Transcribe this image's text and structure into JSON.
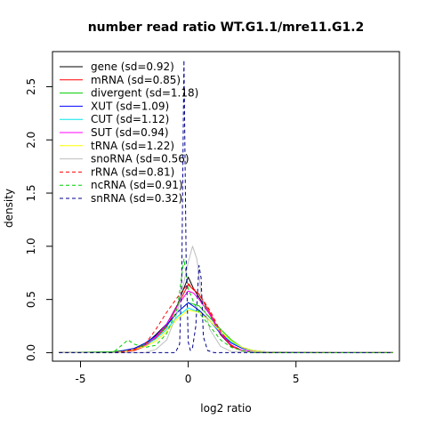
{
  "chart_data": {
    "type": "line",
    "title": "number read ratio WT.G1.1/mre11.G1.2",
    "xlabel": "log2 ratio",
    "ylabel": "density",
    "xlim": [
      -6.3,
      9.8
    ],
    "ylim": [
      -0.08,
      2.83
    ],
    "x_ticks": [
      -5,
      0,
      5
    ],
    "x_tick_labels": [
      "-5",
      "0",
      "5"
    ],
    "y_ticks": [
      0.0,
      0.5,
      1.0,
      1.5,
      2.0,
      2.5
    ],
    "y_tick_labels": [
      "0.0",
      "0.5",
      "1.0",
      "1.5",
      "2.0",
      "2.5"
    ],
    "grid": false,
    "legend_position": "top-left",
    "series": [
      {
        "name": "gene (sd=0.92)",
        "color": "#000000",
        "dash": "solid",
        "x": [
          -6,
          -3.5,
          -3,
          -2.5,
          -2,
          -1.5,
          -1,
          -0.5,
          0,
          0.25,
          0.5,
          1,
          1.5,
          2,
          2.5,
          3,
          3.5,
          9.5
        ],
        "y": [
          0,
          0,
          0.01,
          0.03,
          0.08,
          0.17,
          0.27,
          0.45,
          0.71,
          0.6,
          0.52,
          0.36,
          0.17,
          0.06,
          0.02,
          0.01,
          0,
          0
        ]
      },
      {
        "name": "mRNA (sd=0.85)",
        "color": "#ff0000",
        "dash": "solid",
        "x": [
          -6,
          -3.5,
          -3,
          -2.5,
          -2,
          -1.5,
          -1,
          -0.5,
          0,
          0.25,
          0.5,
          1,
          1.5,
          2,
          2.5,
          3,
          3.5,
          9.5
        ],
        "y": [
          0,
          0,
          0.01,
          0.02,
          0.06,
          0.14,
          0.24,
          0.44,
          0.64,
          0.59,
          0.55,
          0.38,
          0.18,
          0.06,
          0.02,
          0.01,
          0,
          0
        ]
      },
      {
        "name": "divergent (sd=1.18)",
        "color": "#00cd00",
        "dash": "solid",
        "x": [
          -6,
          -3.5,
          -3,
          -2.5,
          -2,
          -1.5,
          -1,
          -0.5,
          0,
          0.5,
          1,
          1.5,
          2,
          2.5,
          3,
          3.5,
          4,
          9.5
        ],
        "y": [
          0,
          0.01,
          0.02,
          0.04,
          0.08,
          0.15,
          0.25,
          0.38,
          0.47,
          0.44,
          0.33,
          0.22,
          0.12,
          0.05,
          0.02,
          0.01,
          0,
          0
        ]
      },
      {
        "name": "XUT (sd=1.09)",
        "color": "#0000ff",
        "dash": "solid",
        "x": [
          -6,
          -3.5,
          -3,
          -2.5,
          -2,
          -1.5,
          -1,
          -0.5,
          0,
          0.5,
          1,
          1.5,
          2,
          2.5,
          3,
          3.5,
          4,
          9.5
        ],
        "y": [
          0,
          0,
          0.02,
          0.04,
          0.09,
          0.16,
          0.26,
          0.38,
          0.47,
          0.4,
          0.3,
          0.18,
          0.09,
          0.04,
          0.02,
          0.01,
          0,
          0
        ]
      },
      {
        "name": "CUT (sd=1.12)",
        "color": "#00e5ee",
        "dash": "solid",
        "x": [
          -6,
          -3.5,
          -3,
          -2.5,
          -2,
          -1.5,
          -1,
          -0.5,
          0,
          0.5,
          1,
          1.5,
          2,
          2.5,
          3,
          3.5,
          4,
          9.5
        ],
        "y": [
          0,
          0,
          0.01,
          0.03,
          0.07,
          0.13,
          0.22,
          0.34,
          0.42,
          0.38,
          0.3,
          0.19,
          0.1,
          0.05,
          0.02,
          0.01,
          0,
          0
        ]
      },
      {
        "name": "SUT (sd=0.94)",
        "color": "#ff00ff",
        "dash": "solid",
        "x": [
          -6,
          -3.5,
          -3,
          -2.5,
          -2,
          -1.5,
          -1,
          -0.5,
          0,
          0.25,
          0.5,
          1,
          1.5,
          2,
          2.5,
          3,
          3.5,
          9.5
        ],
        "y": [
          0,
          0,
          0.01,
          0.03,
          0.07,
          0.15,
          0.27,
          0.44,
          0.58,
          0.56,
          0.5,
          0.36,
          0.18,
          0.07,
          0.02,
          0.01,
          0,
          0
        ]
      },
      {
        "name": "tRNA (sd=1.22)",
        "color": "#ffff00",
        "dash": "solid",
        "x": [
          -6,
          -3.5,
          -3,
          -2.5,
          -2,
          -1.5,
          -1,
          -0.5,
          0,
          0.5,
          1,
          1.5,
          2,
          2.5,
          3,
          3.5,
          4,
          9.5
        ],
        "y": [
          0,
          0,
          0.01,
          0.03,
          0.06,
          0.11,
          0.2,
          0.32,
          0.4,
          0.38,
          0.3,
          0.2,
          0.11,
          0.05,
          0.02,
          0.01,
          0,
          0
        ]
      },
      {
        "name": "snoRNA (sd=0.56)",
        "color": "#bebebe",
        "dash": "solid",
        "x": [
          -6,
          -2,
          -1.5,
          -1,
          -0.5,
          -0.25,
          0,
          0.2,
          0.4,
          0.6,
          1,
          1.5,
          2,
          9.5
        ],
        "y": [
          0,
          0,
          0.03,
          0.12,
          0.38,
          0.62,
          0.85,
          1.0,
          0.88,
          0.55,
          0.22,
          0.06,
          0.01,
          0
        ]
      },
      {
        "name": "rRNA (sd=0.81)",
        "color": "#ff0000",
        "dash": "dashed",
        "x": [
          -6,
          -3.5,
          -3,
          -2.5,
          -2,
          -1.5,
          -1,
          -0.5,
          0,
          0.5,
          1,
          1.5,
          2,
          2.5,
          3,
          9.5
        ],
        "y": [
          0,
          0,
          0.01,
          0.03,
          0.08,
          0.22,
          0.38,
          0.52,
          0.65,
          0.55,
          0.4,
          0.2,
          0.07,
          0.02,
          0,
          0
        ]
      },
      {
        "name": "ncRNA (sd=0.91)",
        "color": "#00cd00",
        "dash": "dashed",
        "x": [
          -6,
          -3.5,
          -3.2,
          -2.8,
          -2.5,
          -2,
          -1.5,
          -1,
          -0.5,
          -0.2,
          0,
          0.3,
          0.6,
          1,
          1.5,
          2,
          2.5,
          3,
          9.5
        ],
        "y": [
          0,
          0,
          0.05,
          0.12,
          0.08,
          0.05,
          0.07,
          0.18,
          0.42,
          0.88,
          0.6,
          0.45,
          0.35,
          0.25,
          0.12,
          0.05,
          0.02,
          0,
          0
        ]
      },
      {
        "name": "snRNA (sd=0.32)",
        "color": "#00008b",
        "dash": "dashed",
        "x": [
          -6,
          -0.6,
          -0.4,
          -0.3,
          -0.2,
          -0.1,
          0.0,
          0.1,
          0.2,
          0.35,
          0.5,
          0.6,
          0.7,
          0.9,
          1.2,
          9.5
        ],
        "y": [
          0,
          0,
          0.08,
          0.7,
          2.75,
          0.9,
          0.1,
          0.02,
          0.05,
          0.25,
          0.82,
          0.7,
          0.15,
          0.02,
          0,
          0
        ]
      }
    ]
  }
}
